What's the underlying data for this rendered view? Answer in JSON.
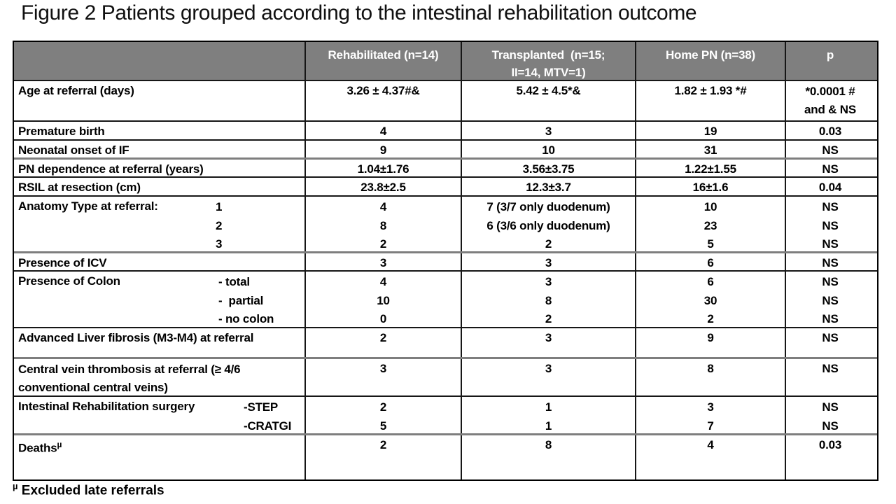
{
  "title": "Figure 2 Patients grouped according to the intestinal rehabilitation outcome",
  "footnote": {
    "symbol": "µ",
    "text": "Excluded late referrals"
  },
  "colors": {
    "header_bg": "#7f7f7f",
    "header_text": "#ffffff",
    "border": "#161616",
    "thick_border": "#7e7e7e"
  },
  "table": {
    "headers": [
      {
        "lines": [
          ""
        ]
      },
      {
        "lines": [
          "Rehabilitated (n=14)"
        ]
      },
      {
        "lines": [
          "Transplanted  (n=15;",
          "II=14, MTV=1)"
        ]
      },
      {
        "lines": [
          "Home PN (n=38)"
        ]
      },
      {
        "lines": [
          "p"
        ]
      }
    ],
    "rows": [
      {
        "label": "Age at referral (days)",
        "c1": "3.26 ± 4.37#&",
        "c2": "5.42 ± 4.5*&",
        "c3": "1.82 ± 1.93 *#",
        "p": [
          "*0.0001 #",
          "and & NS"
        ]
      },
      {
        "label": "Premature birth",
        "c1": "4",
        "c2": "3",
        "c3": "19",
        "p": "0.03"
      },
      {
        "label": "Neonatal onset of IF",
        "c1": "9",
        "c2": "10",
        "c3": "31",
        "p": "NS"
      },
      {
        "label": "PN dependence at referral (years)",
        "c1": "1.04±1.76",
        "c2": "3.56±3.75",
        "c3": "1.22±1.55",
        "p": "NS"
      },
      {
        "label": "RSIL at resection (cm)",
        "c1": "23.8±2.5",
        "c2": "12.3±3.7",
        "c3": "16±1.6",
        "p": "0.04"
      },
      {
        "label": "Anatomy Type at referral:",
        "sub": [
          "1",
          "2",
          "3"
        ],
        "c1": [
          "4",
          "8",
          "2"
        ],
        "c2": [
          "7 (3/7 only duodenum)",
          "6 (3/6 only duodenum)",
          "2"
        ],
        "c3": [
          "10",
          "23",
          "5"
        ],
        "p": [
          "NS",
          "NS",
          "NS"
        ]
      },
      {
        "label": "Presence of ICV",
        "c1": "3",
        "c2": "3",
        "c3": "6",
        "p": "NS"
      },
      {
        "label": "Presence of Colon",
        "sub": [
          "- total",
          "-  partial",
          "- no colon"
        ],
        "c1": [
          "4",
          "10",
          "0"
        ],
        "c2": [
          "3",
          "8",
          "2"
        ],
        "c3": [
          "6",
          "30",
          "2"
        ],
        "p": [
          "NS",
          "NS",
          "NS"
        ]
      },
      {
        "label": "Advanced Liver fibrosis (M3-M4) at referral",
        "c1": "2",
        "c2": "3",
        "c3": "9",
        "p": "NS"
      },
      {
        "label_lines": [
          "Central vein thrombosis at referral (≥ 4/6",
          "conventional central veins)"
        ],
        "c1": "3",
        "c2": "3",
        "c3": "8",
        "p": "NS"
      },
      {
        "label": "Intestinal Rehabilitation surgery",
        "sub": [
          "-STEP",
          "-CRATGI"
        ],
        "c1": [
          "2",
          "5"
        ],
        "c2": [
          "1",
          "1"
        ],
        "c3": [
          "3",
          "7"
        ],
        "p": [
          "NS",
          "NS"
        ]
      },
      {
        "label": "Deaths",
        "label_sup": "µ",
        "c1": "2",
        "c2": "8",
        "c3": "4",
        "p": "0.03"
      }
    ]
  }
}
